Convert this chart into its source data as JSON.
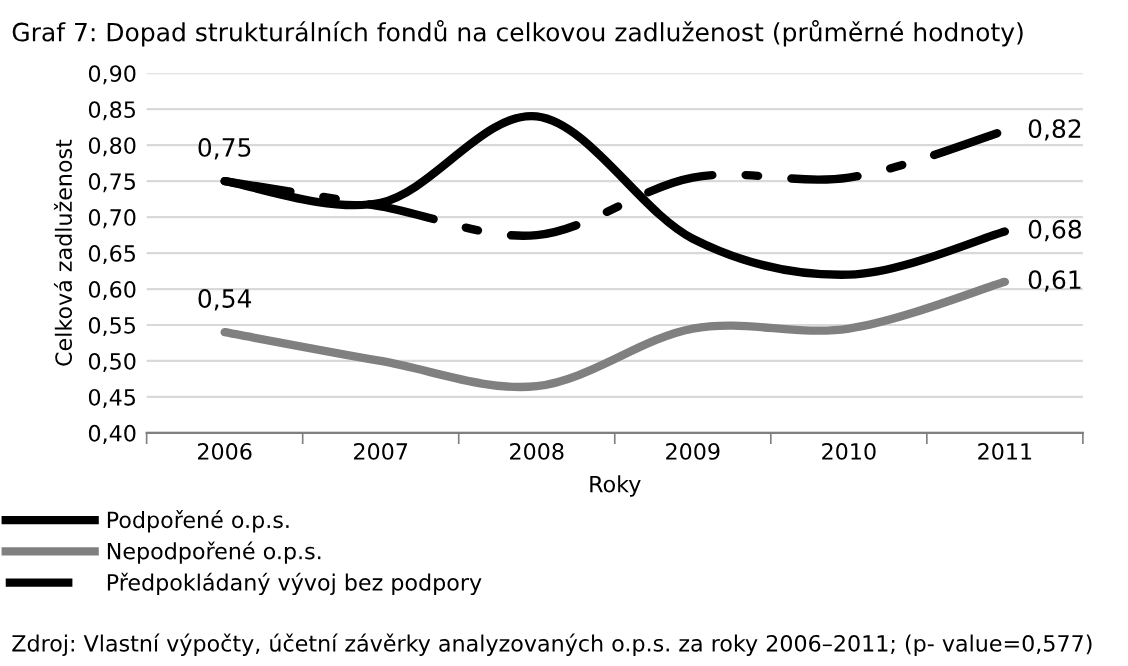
{
  "chart_data": {
    "type": "line",
    "title": "Graf 7: Dopad strukturálních fondů na celkovou zadluženost (průměrné hodnoty)",
    "xlabel": "Roky",
    "ylabel": "Celková zadluženost",
    "categories": [
      "2006",
      "2007",
      "2008",
      "2009",
      "2010",
      "2011"
    ],
    "series": [
      {
        "name": "Podpořené o.p.s.",
        "color": "#000000",
        "line_style": "solid",
        "values": [
          0.75,
          0.72,
          0.84,
          0.67,
          0.62,
          0.68
        ],
        "value_labels": [
          "0,75",
          null,
          null,
          null,
          null,
          "0,68"
        ]
      },
      {
        "name": "Nepodpořené o.p.s.",
        "color": "#808080",
        "line_style": "solid",
        "values": [
          0.54,
          0.5,
          0.465,
          0.545,
          0.545,
          0.61
        ],
        "value_labels": [
          "0,54",
          null,
          null,
          null,
          null,
          "0,61"
        ]
      },
      {
        "name": "Předpokládaný vývoj bez podpory",
        "color": "#000000",
        "line_style": "dashdot",
        "values": [
          0.75,
          0.715,
          0.675,
          0.755,
          0.755,
          0.82
        ],
        "value_labels": [
          null,
          null,
          null,
          null,
          null,
          "0,82"
        ]
      }
    ],
    "ylim": [
      0.4,
      0.9
    ],
    "yticks": [
      {
        "value": 0.4,
        "label": "0,40"
      },
      {
        "value": 0.45,
        "label": "0,45"
      },
      {
        "value": 0.5,
        "label": "0,50"
      },
      {
        "value": 0.55,
        "label": "0,55"
      },
      {
        "value": 0.6,
        "label": "0,60"
      },
      {
        "value": 0.65,
        "label": "0,65"
      },
      {
        "value": 0.7,
        "label": "0,70"
      },
      {
        "value": 0.75,
        "label": "0,75"
      },
      {
        "value": 0.8,
        "label": "0,80"
      },
      {
        "value": 0.85,
        "label": "0,85"
      },
      {
        "value": 0.9,
        "label": "0,90"
      }
    ],
    "grid": "y",
    "legend": "bottom",
    "marker": "none",
    "annotations": [
      "Zdroj: Vlastní výpočty, účetní závěrky analyzovaných o.p.s. za roky 2006–2011; (p- value=0,577)"
    ]
  }
}
